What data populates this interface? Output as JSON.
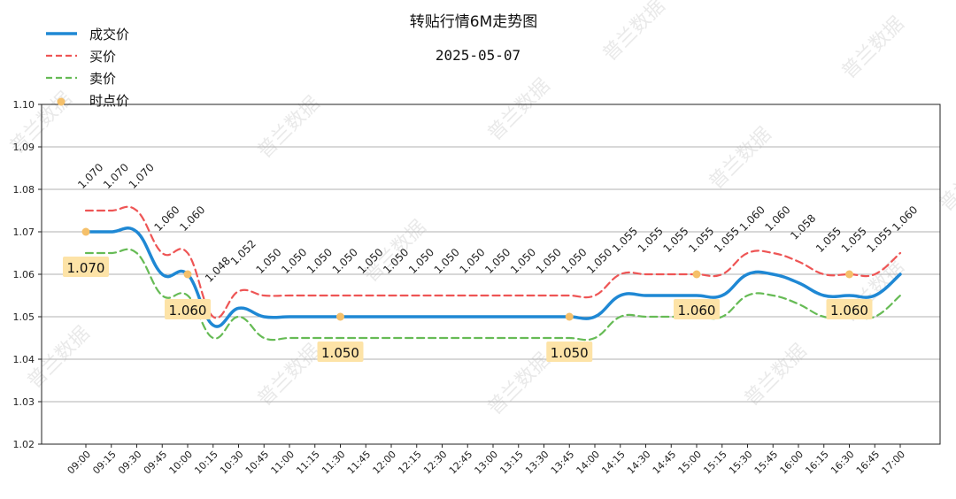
{
  "chart_data": {
    "type": "line",
    "title": "转贴行情6M走势图",
    "subtitle": "2025-05-07",
    "watermark": "普兰数据",
    "ylim": [
      1.02,
      1.1
    ],
    "yticks": [
      "1.02",
      "1.03",
      "1.04",
      "1.05",
      "1.06",
      "1.07",
      "1.08",
      "1.09",
      "1.10"
    ],
    "categories": [
      "09:00",
      "09:15",
      "09:30",
      "09:45",
      "10:00",
      "10:15",
      "10:30",
      "10:45",
      "11:00",
      "11:15",
      "11:30",
      "11:45",
      "12:00",
      "12:15",
      "12:30",
      "12:45",
      "13:00",
      "13:15",
      "13:30",
      "13:45",
      "14:00",
      "14:15",
      "14:30",
      "14:45",
      "15:00",
      "15:15",
      "15:30",
      "15:45",
      "16:00",
      "16:15",
      "16:30",
      "16:45",
      "17:00"
    ],
    "series": [
      {
        "name": "成交价",
        "color": "#1f88d4",
        "style": "solid",
        "values": [
          1.07,
          1.07,
          1.07,
          1.06,
          1.06,
          1.048,
          1.052,
          1.05,
          1.05,
          1.05,
          1.05,
          1.05,
          1.05,
          1.05,
          1.05,
          1.05,
          1.05,
          1.05,
          1.05,
          1.05,
          1.05,
          1.055,
          1.055,
          1.055,
          1.055,
          1.055,
          1.06,
          1.06,
          1.058,
          1.055,
          1.055,
          1.055,
          1.06
        ]
      },
      {
        "name": "买价",
        "color": "#ee5555",
        "style": "dashed",
        "values": [
          1.075,
          1.075,
          1.075,
          1.065,
          1.065,
          1.05,
          1.056,
          1.055,
          1.055,
          1.055,
          1.055,
          1.055,
          1.055,
          1.055,
          1.055,
          1.055,
          1.055,
          1.055,
          1.055,
          1.055,
          1.055,
          1.06,
          1.06,
          1.06,
          1.06,
          1.06,
          1.065,
          1.065,
          1.063,
          1.06,
          1.06,
          1.06,
          1.065
        ]
      },
      {
        "name": "卖价",
        "color": "#66bb55",
        "style": "dashed",
        "values": [
          1.065,
          1.065,
          1.065,
          1.055,
          1.055,
          1.045,
          1.05,
          1.045,
          1.045,
          1.045,
          1.045,
          1.045,
          1.045,
          1.045,
          1.045,
          1.045,
          1.045,
          1.045,
          1.045,
          1.045,
          1.045,
          1.05,
          1.05,
          1.05,
          1.05,
          1.05,
          1.055,
          1.055,
          1.053,
          1.05,
          1.05,
          1.05,
          1.055
        ]
      }
    ],
    "data_labels": [
      "1.070",
      "1.070",
      "1.070",
      "1.060",
      "1.060",
      "1.048",
      "1.052",
      "1.050",
      "1.050",
      "1.050",
      "1.050",
      "1.050",
      "1.050",
      "1.050",
      "1.050",
      "1.050",
      "1.050",
      "1.050",
      "1.050",
      "1.050",
      "1.050",
      "1.055",
      "1.055",
      "1.055",
      "1.055",
      "1.055",
      "1.060",
      "1.060",
      "1.058",
      "1.055",
      "1.055",
      "1.055",
      "1.060"
    ],
    "point_price": {
      "name": "时点价",
      "color": "#f5c06a",
      "points": [
        {
          "category": "09:00",
          "value": 1.07,
          "label": "1.070"
        },
        {
          "category": "10:00",
          "value": 1.06,
          "label": "1.060"
        },
        {
          "category": "11:30",
          "value": 1.05,
          "label": "1.050"
        },
        {
          "category": "13:45",
          "value": 1.05,
          "label": "1.050"
        },
        {
          "category": "15:00",
          "value": 1.06,
          "label": "1.060"
        },
        {
          "category": "16:30",
          "value": 1.06,
          "label": "1.060"
        }
      ]
    },
    "legend": {
      "position": "top-left",
      "items": [
        {
          "label": "成交价",
          "color": "#1f88d4",
          "style": "solid"
        },
        {
          "label": "买价",
          "color": "#ee5555",
          "style": "dashed"
        },
        {
          "label": "卖价",
          "color": "#66bb55",
          "style": "dashed"
        },
        {
          "label": "时点价",
          "color": "#f5c06a",
          "style": "marker"
        }
      ]
    },
    "grid": true,
    "annotation_bg": "#fde3a7"
  }
}
